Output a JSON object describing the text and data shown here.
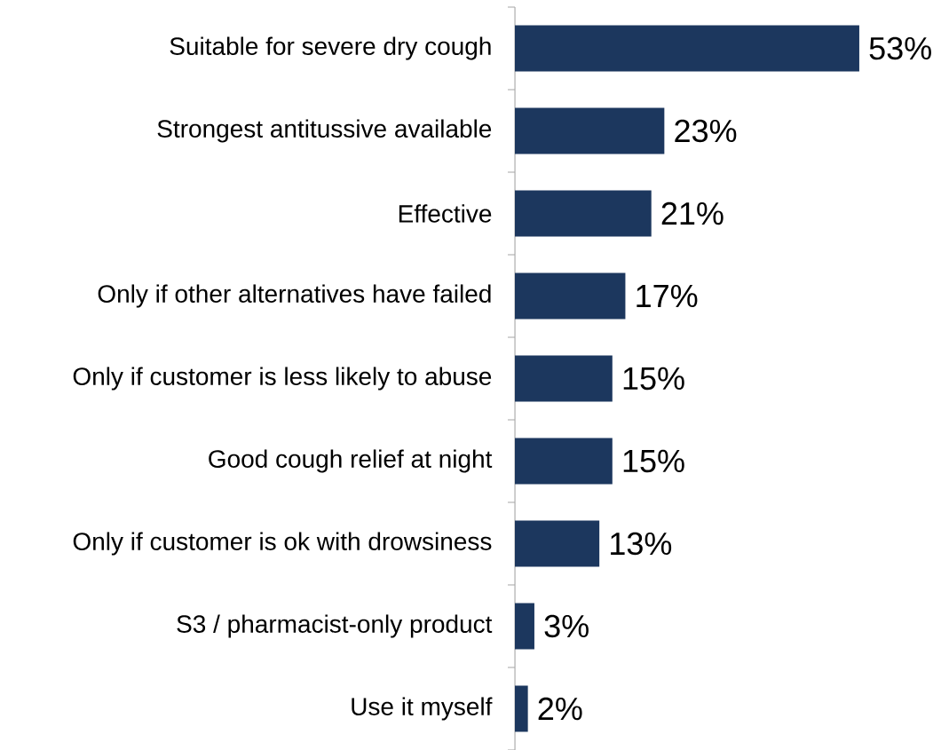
{
  "chart_data": {
    "type": "bar",
    "orientation": "horizontal",
    "categories": [
      "Suitable for severe dry cough",
      "Strongest antitussive available",
      "Effective",
      "Only if other alternatives have failed",
      "Only if customer is less likely to abuse",
      "Good cough relief at night",
      "Only if customer is ok with drowsiness",
      "S3 / pharmacist-only product",
      "Use it myself"
    ],
    "values": [
      53,
      23,
      21,
      17,
      15,
      15,
      13,
      3,
      2
    ],
    "value_labels": [
      "53%",
      "23%",
      "21%",
      "17%",
      "15%",
      "15%",
      "13%",
      "3%",
      "2%"
    ],
    "color": "#1c375e"
  }
}
